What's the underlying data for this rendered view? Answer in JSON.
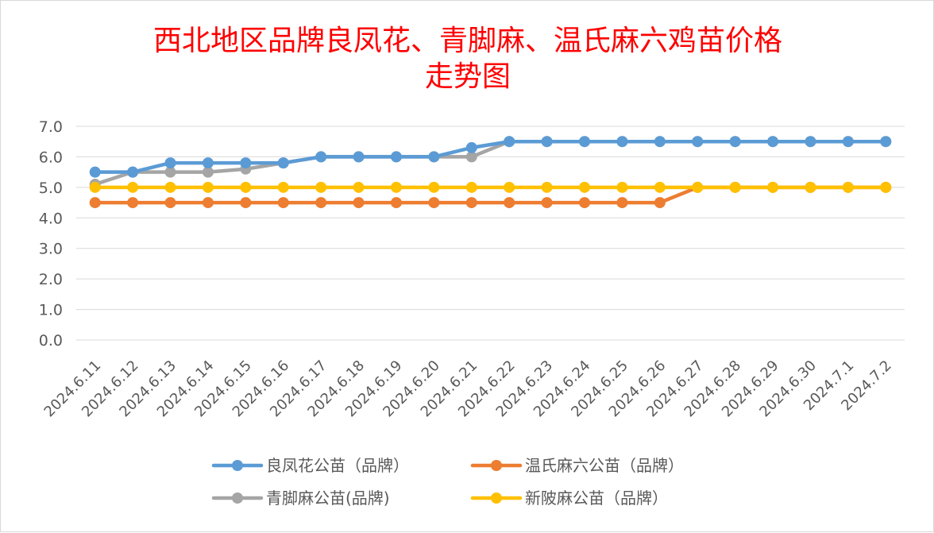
{
  "chart_data": {
    "type": "line",
    "title_line1": "西北地区品牌良凤花、青脚麻、温氏麻六鸡苗价格",
    "title_line2": "走势图",
    "categories": [
      "2024.6.11",
      "2024.6.12",
      "2024.6.13",
      "2024.6.14",
      "2024.6.15",
      "2024.6.16",
      "2024.6.17",
      "2024.6.18",
      "2024.6.19",
      "2024.6.20",
      "2024.6.21",
      "2024.6.22",
      "2024.6.23",
      "2024.6.24",
      "2024.6.25",
      "2024.6.26",
      "2024.6.27",
      "2024.6.28",
      "2024.6.29",
      "2024.6.30",
      "2024.7.1",
      "2024.7.2"
    ],
    "y_ticks": [
      "0.0",
      "1.0",
      "2.0",
      "3.0",
      "4.0",
      "5.0",
      "6.0",
      "7.0"
    ],
    "ylim": [
      0,
      7
    ],
    "grid": true,
    "legend_position": "bottom",
    "series": [
      {
        "name": "良凤花公苗（品牌）",
        "color": "#5b9bd5",
        "values": [
          5.5,
          5.5,
          5.8,
          5.8,
          5.8,
          5.8,
          6.0,
          6.0,
          6.0,
          6.0,
          6.3,
          6.5,
          6.5,
          6.5,
          6.5,
          6.5,
          6.5,
          6.5,
          6.5,
          6.5,
          6.5,
          6.5
        ]
      },
      {
        "name": "温氏麻六公苗（品牌）",
        "color": "#ed7d31",
        "values": [
          4.5,
          4.5,
          4.5,
          4.5,
          4.5,
          4.5,
          4.5,
          4.5,
          4.5,
          4.5,
          4.5,
          4.5,
          4.5,
          4.5,
          4.5,
          4.5,
          5.0,
          5.0,
          5.0,
          5.0,
          5.0,
          5.0
        ]
      },
      {
        "name": "青脚麻公苗(品牌)",
        "color": "#a5a5a5",
        "values": [
          5.1,
          5.5,
          5.5,
          5.5,
          5.6,
          5.8,
          6.0,
          6.0,
          6.0,
          6.0,
          6.0,
          6.5,
          6.5,
          6.5,
          6.5,
          6.5,
          6.5,
          6.5,
          6.5,
          6.5,
          6.5,
          6.5
        ]
      },
      {
        "name": "新陂麻公苗（品牌）",
        "color": "#ffc000",
        "values": [
          5.0,
          5.0,
          5.0,
          5.0,
          5.0,
          5.0,
          5.0,
          5.0,
          5.0,
          5.0,
          5.0,
          5.0,
          5.0,
          5.0,
          5.0,
          5.0,
          5.0,
          5.0,
          5.0,
          5.0,
          5.0,
          5.0
        ]
      }
    ]
  }
}
